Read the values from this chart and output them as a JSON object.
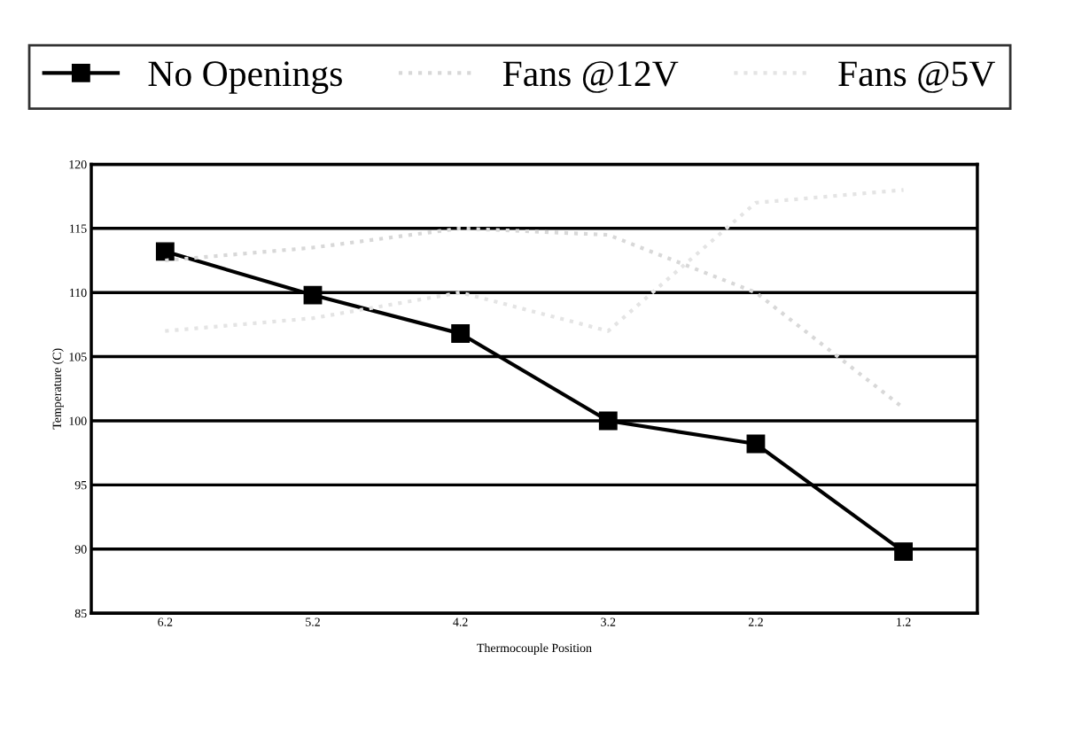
{
  "chart_data": {
    "type": "line",
    "xlabel": "Thermocouple Position",
    "ylabel": "Temperature (C)",
    "categories": [
      "6.2",
      "5.2",
      "4.2",
      "3.2",
      "2.2",
      "1.2"
    ],
    "series": [
      {
        "name": "No Openings",
        "color": "#000000",
        "values": [
          113.2,
          109.8,
          106.8,
          100,
          98.2,
          89.8
        ],
        "marker": "square",
        "line_style": "solid"
      },
      {
        "name": "Fans @12V",
        "color": "#d8d8d8",
        "values": [
          112.5,
          113.5,
          115,
          114.5,
          110,
          101
        ],
        "marker": "none",
        "line_style": "dotted"
      },
      {
        "name": "Fans @5V",
        "color": "#e4e4e4",
        "values": [
          107,
          108,
          110,
          107,
          117,
          118
        ],
        "marker": "none",
        "line_style": "dotted"
      }
    ],
    "ylim": [
      85,
      120
    ],
    "yticks": [
      85,
      90,
      95,
      100,
      105,
      110,
      115,
      120
    ],
    "grid": "y",
    "legend": "top"
  }
}
